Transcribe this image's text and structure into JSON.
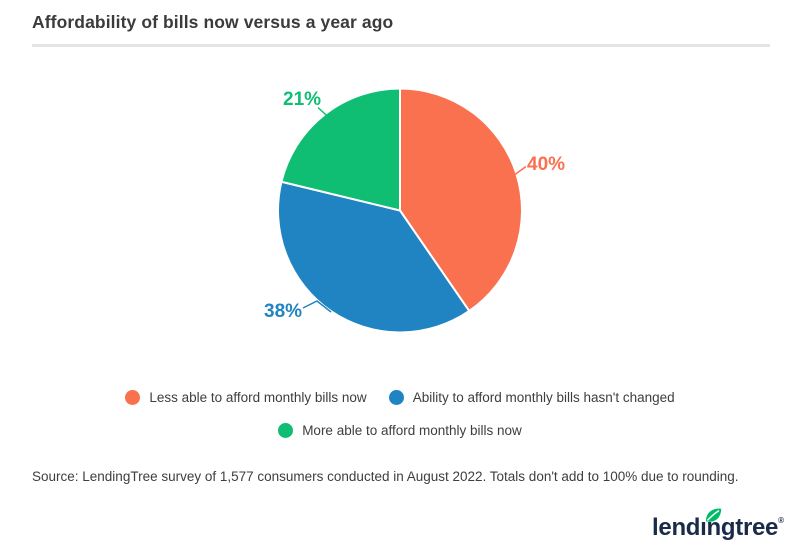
{
  "header": {
    "title": "Affordability of bills now versus a year ago"
  },
  "chart_data": {
    "type": "pie",
    "title": "Affordability of bills now versus a year ago",
    "start_angle_deg": 0,
    "direction": "clockwise",
    "labels_format": "percent",
    "legend_position": "bottom",
    "slices": [
      {
        "label": "Less able to afford monthly bills now",
        "value": 40,
        "display": "40%",
        "color": "#FA7150"
      },
      {
        "label": "Ability to afford monthly bills hasn't changed",
        "value": 38,
        "display": "38%",
        "color": "#2184C2"
      },
      {
        "label": "More able to afford monthly bills now",
        "value": 21,
        "display": "21%",
        "color": "#10BE73"
      }
    ]
  },
  "footer": {
    "source": "Source: LendingTree survey of 1,577 consumers conducted in August 2022. Totals don't add to 100% due to rounding."
  },
  "branding": {
    "logo_text": "lendingtree",
    "registered_mark": "®",
    "logo_color": "#1A2B49",
    "leaf_color": "#00BA6A"
  }
}
